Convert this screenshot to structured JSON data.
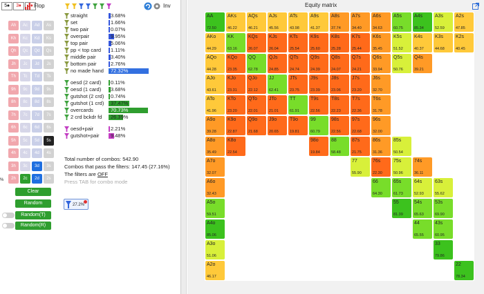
{
  "board": {
    "cards": [
      "5♠",
      "3♦",
      "2♦"
    ],
    "street_label": "Flop",
    "inv_label": "Inv"
  },
  "suit_grid": {
    "rows": [
      [
        "Ah",
        "Ac",
        "Ad",
        "As"
      ],
      [
        "Kh",
        "Kc",
        "Kd",
        "Ks"
      ],
      [
        "Qh",
        "Qc",
        "Qd",
        "Qs"
      ],
      [
        "Jh",
        "Jc",
        "Jd",
        "Js"
      ],
      [
        "Th",
        "Tc",
        "Td",
        "Ts"
      ],
      [
        "9h",
        "9c",
        "9d",
        "9s"
      ],
      [
        "8h",
        "8c",
        "8d",
        "8s"
      ],
      [
        "7h",
        "7c",
        "7d",
        "7s"
      ],
      [
        "6h",
        "6c",
        "6d",
        "6s"
      ],
      [
        "5h",
        "5c",
        "5d",
        "5s"
      ],
      [
        "4h",
        "4c",
        "4d",
        "4s"
      ],
      [
        "3h",
        "3c",
        "3d",
        "3s"
      ],
      [
        "2h",
        "2c",
        "2d",
        "2s"
      ]
    ],
    "highlight": {
      "5s": "black",
      "3d": "blue",
      "2c": "green",
      "2d": "blue"
    }
  },
  "filters": [
    {
      "label": "straight",
      "pct": "3.68%",
      "bar": 3.68,
      "color": "#3355dd"
    },
    {
      "label": "set",
      "pct": "1.66%",
      "bar": 1.66,
      "color": "#3355dd"
    },
    {
      "label": "two pair",
      "pct": "0.07%",
      "bar": 0.07,
      "color": "#3355dd"
    },
    {
      "label": "overpair",
      "pct": "9.95%",
      "bar": 9.95,
      "color": "#3355dd"
    },
    {
      "label": "top pair",
      "pct": "5.06%",
      "bar": 5.06,
      "color": "#3355dd"
    },
    {
      "label": "pp < top card",
      "pct": "1.11%",
      "bar": 1.11,
      "color": "#3355dd"
    },
    {
      "label": "middle pair",
      "pct": "3.40%",
      "bar": 3.4,
      "color": "#3355dd"
    },
    {
      "label": "bottom pair",
      "pct": "2.76%",
      "bar": 2.76,
      "color": "#3355dd"
    },
    {
      "label": "no made hand",
      "pct": "72.32%",
      "bar": 72.32,
      "color": "#3370e0"
    },
    {
      "label": "oesd (2 card)",
      "pct": "0.11%",
      "bar": 0.11,
      "color": "#2f9e2f"
    },
    {
      "label": "oesd (1 card)",
      "pct": "3.68%",
      "bar": 3.68,
      "color": "#2f9e2f"
    },
    {
      "label": "gutshot (2 crd)",
      "pct": "0.74%",
      "bar": 0.74,
      "color": "#2f9e2f"
    },
    {
      "label": "gutshot (1 crd)",
      "pct": "37.47%",
      "bar": 37.47,
      "color": "#2f9e2f"
    },
    {
      "label": "overcards",
      "pct": "70.73%",
      "bar": 70.73,
      "color": "#2f9e2f"
    },
    {
      "label": "2 crd bckdr fd",
      "pct": "26.39%",
      "bar": 26.39,
      "color": "#2f9e2f"
    },
    {
      "label": "oesd+pair",
      "pct": "2.21%",
      "bar": 2.21,
      "color": "#c23cc2"
    },
    {
      "label": "gutshot+pair",
      "pct": "9.48%",
      "bar": 9.48,
      "color": "#c23cc2"
    }
  ],
  "info": {
    "total": "Total number of combos: 542.90",
    "passing": "Combos that pass the filters: 147.45 (27.16%)",
    "filters_prefix": "The filters are ",
    "filters_state": "OFF",
    "hint": "Press TAB for combo mode"
  },
  "buttons": {
    "clear": "Clear",
    "random": "Random",
    "random_t": "Random(T)",
    "random_r": "Random(R)"
  },
  "equity_widget_pct": "27.2%",
  "matrix": {
    "title": "Equity matrix",
    "ranks": [
      "A",
      "K",
      "Q",
      "J",
      "T",
      "9",
      "8",
      "7",
      "6",
      "5",
      "4",
      "3",
      "2"
    ],
    "cells": [
      [
        "72.50",
        "46.22",
        "46.21",
        "45.56",
        "43.98",
        "41.37",
        "37.74",
        "34.40",
        "34.63",
        "60.75",
        "85.34",
        "52.59",
        "47.85"
      ],
      [
        "44.29",
        "63.16",
        "26.07",
        "26.04",
        "25.54",
        "25.60",
        "25.28",
        "25.44",
        "35.45",
        "51.52",
        "40.37",
        "44.68",
        "40.45"
      ],
      [
        "44.28",
        "23.35",
        "62.78",
        "24.85",
        "24.74",
        "24.39",
        "24.07",
        "24.21",
        "33.94",
        "50.76",
        "39.21",
        "",
        ""
      ],
      [
        "43.61",
        "23.31",
        "22.12",
        "62.41",
        "23.75",
        "23.39",
        "23.06",
        "23.20",
        "32.70",
        "",
        "",
        "",
        ""
      ],
      [
        "41.96",
        "23.20",
        "22.01",
        "21.01",
        "61.91",
        "22.56",
        "22.23",
        "22.36",
        "31.78",
        "",
        "",
        "",
        ""
      ],
      [
        "39.28",
        "22.87",
        "21.68",
        "20.65",
        "19.81",
        "60.79",
        "22.56",
        "22.68",
        "32.00",
        "",
        "",
        "",
        ""
      ],
      [
        "35.49",
        "22.54",
        "",
        "",
        "",
        "19.84",
        "58.48",
        "21.75",
        "31.36",
        "50.54",
        "",
        "",
        ""
      ],
      [
        "32.07",
        "",
        "",
        "",
        "",
        "",
        "",
        "55.90",
        "22.30",
        "50.96",
        "36.11",
        "",
        ""
      ],
      [
        "32.43",
        "",
        "",
        "",
        "",
        "",
        "",
        "",
        "64.30",
        "61.73",
        "52.93",
        "55.62",
        ""
      ],
      [
        "59.51",
        "",
        "",
        "",
        "",
        "",
        "",
        "",
        "",
        "81.39",
        "65.63",
        "69.90",
        ""
      ],
      [
        "85.06",
        "",
        "",
        "",
        "",
        "",
        "",
        "",
        "",
        "",
        "65.55",
        "60.95",
        ""
      ],
      [
        "51.06",
        "",
        "",
        "",
        "",
        "",
        "",
        "",
        "",
        "",
        "",
        "79.86",
        ""
      ],
      [
        "46.17",
        "",
        "",
        "",
        "",
        "",
        "",
        "",
        "",
        "",
        "",
        "",
        "78.34"
      ]
    ],
    "colors": {
      "low": "#ff6a1a",
      "mid_low": "#ff9a26",
      "mid": "#ffc93a",
      "mid_high": "#d8f03a",
      "high": "#78dd2a",
      "top": "#3cc21e"
    }
  }
}
